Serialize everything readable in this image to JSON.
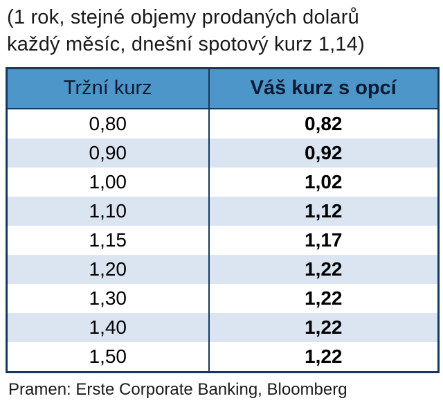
{
  "title": {
    "line1": "(1 rok, stejné objemy prodaných dolarů",
    "line2": "každý měsíc, dnešní spotový kurz 1,14)"
  },
  "table": {
    "headers": [
      "Tržní kurz",
      "Váš kurz s opcí"
    ],
    "rows": [
      {
        "market": "0,80",
        "option": "0,82"
      },
      {
        "market": "0,90",
        "option": "0,92"
      },
      {
        "market": "1,00",
        "option": "1,02"
      },
      {
        "market": "1,10",
        "option": "1,12"
      },
      {
        "market": "1,15",
        "option": "1,17"
      },
      {
        "market": "1,20",
        "option": "1,22"
      },
      {
        "market": "1,30",
        "option": "1,22"
      },
      {
        "market": "1,40",
        "option": "1,22"
      },
      {
        "market": "1,50",
        "option": "1,22"
      }
    ]
  },
  "footer": {
    "source": "Pramen: Erste Corporate Banking, Bloomberg"
  },
  "colors": {
    "header_bg": "#4D96C9",
    "row_alt_bg": "#DBE5F1",
    "border": "#17375E"
  }
}
